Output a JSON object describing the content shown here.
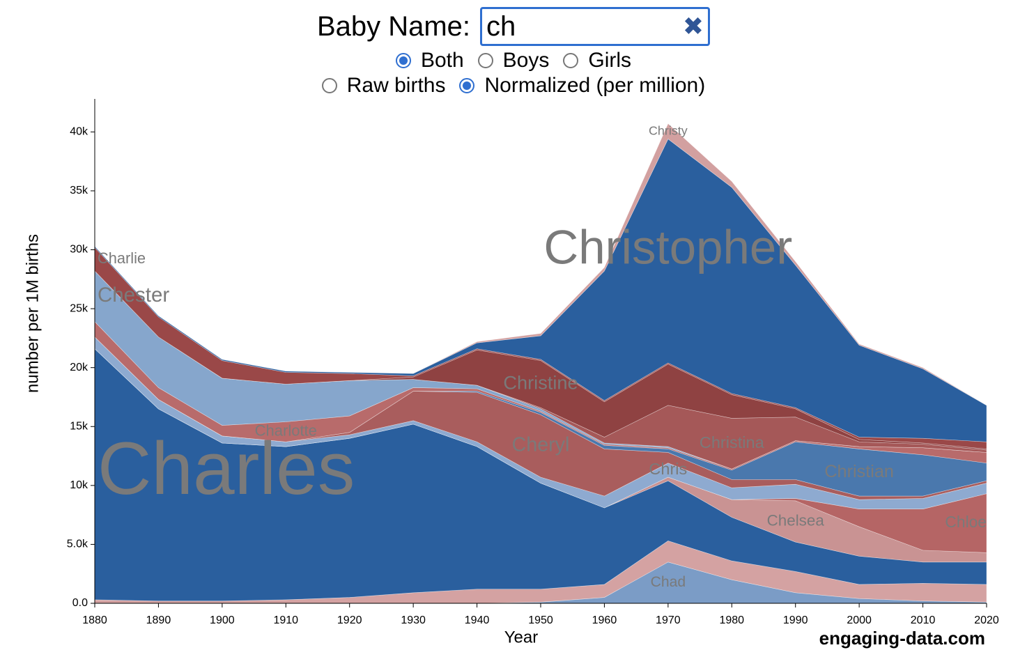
{
  "controls": {
    "label": "Baby Name:",
    "input": "ch",
    "clear": "✖",
    "radios_sex": [
      {
        "label": "Both",
        "checked": true
      },
      {
        "label": "Boys",
        "checked": false
      },
      {
        "label": "Girls",
        "checked": false
      }
    ],
    "radios_scale": [
      {
        "label": "Raw births",
        "checked": false
      },
      {
        "label": "Normalized (per million)",
        "checked": true
      }
    ]
  },
  "credit": "engaging-data.com",
  "chart_data": {
    "type": "stacked_area",
    "xlabel": "Year",
    "ylabel": "number per 1M births",
    "x": [
      1880,
      1890,
      1900,
      1910,
      1920,
      1930,
      1940,
      1950,
      1960,
      1970,
      1980,
      1990,
      2000,
      2010,
      2020
    ],
    "xlim": [
      1880,
      2020
    ],
    "xticks": [
      1880,
      1890,
      1900,
      1910,
      1920,
      1930,
      1940,
      1950,
      1960,
      1970,
      1980,
      1990,
      2000,
      2010,
      2020
    ],
    "ylim": [
      0,
      42800
    ],
    "yticks": [
      {
        "value": 0,
        "label": "0.0"
      },
      {
        "value": 5000,
        "label": "5.0k"
      },
      {
        "value": 10000,
        "label": "10k"
      },
      {
        "value": 15000,
        "label": "15k"
      },
      {
        "value": 20000,
        "label": "20k"
      },
      {
        "value": 25000,
        "label": "25k"
      },
      {
        "value": 30000,
        "label": "30k"
      },
      {
        "value": 35000,
        "label": "35k"
      },
      {
        "value": 40000,
        "label": "40k"
      }
    ],
    "series": [
      {
        "name": "Chad",
        "color": "#7b9cc6",
        "values": [
          0,
          0,
          0,
          0,
          0,
          0,
          0,
          100,
          500,
          3500,
          2000,
          900,
          400,
          200,
          100
        ]
      },
      {
        "color": "#d4a2a2",
        "values": [
          300,
          200,
          200,
          300,
          500,
          900,
          1200,
          1100,
          1100,
          1800,
          1600,
          1800,
          1200,
          1500,
          1500
        ]
      },
      {
        "name": "Charles",
        "color": "#2a5f9e",
        "values": [
          21300,
          16300,
          13400,
          13000,
          13500,
          14300,
          12100,
          9000,
          6500,
          5100,
          3700,
          2500,
          2400,
          1800,
          1900
        ]
      },
      {
        "name": "Chelsea",
        "color": "#c99393",
        "values": [
          0,
          0,
          0,
          0,
          0,
          0,
          0,
          0,
          0,
          300,
          1500,
          3500,
          2500,
          1000,
          800
        ]
      },
      {
        "name": "Chloe",
        "color": "#b56565",
        "values": [
          0,
          0,
          0,
          0,
          0,
          0,
          0,
          0,
          0,
          0,
          0,
          200,
          1500,
          3500,
          5000
        ]
      },
      {
        "name": "Chris",
        "color": "#8eaad0",
        "values": [
          1000,
          800,
          600,
          400,
          300,
          300,
          400,
          500,
          1000,
          1200,
          1000,
          1200,
          800,
          900,
          900
        ]
      },
      {
        "name": "Cheryl",
        "color": "#a95d5d",
        "values": [
          0,
          0,
          0,
          0,
          200,
          2500,
          4200,
          5300,
          4000,
          900,
          700,
          400,
          300,
          200,
          200
        ]
      },
      {
        "name": "Christian",
        "color": "#4a78ad",
        "values": [
          0,
          0,
          0,
          0,
          0,
          0,
          100,
          200,
          300,
          300,
          800,
          3200,
          4000,
          3500,
          1500
        ]
      },
      {
        "name": "Charlotte",
        "color": "#b86b6b",
        "values": [
          1300,
          1000,
          900,
          1700,
          1400,
          300,
          200,
          100,
          100,
          100,
          100,
          100,
          200,
          600,
          900
        ]
      },
      {
        "name": "Chester",
        "color": "#86a6cc",
        "values": [
          4300,
          4300,
          4000,
          3200,
          3000,
          700,
          300,
          200,
          100,
          100,
          0,
          0,
          0,
          0,
          0
        ]
      },
      {
        "name": "Christina",
        "color": "#a55858",
        "values": [
          0,
          0,
          0,
          0,
          0,
          0,
          0,
          100,
          500,
          3500,
          4300,
          2000,
          400,
          300,
          200
        ]
      },
      {
        "name": "Christine",
        "color": "#8f4242",
        "values": [
          0,
          0,
          0,
          0,
          0,
          200,
          3000,
          4000,
          3000,
          3500,
          2000,
          700,
          200,
          100,
          100
        ]
      },
      {
        "name": "Charlie",
        "color": "#9a4848",
        "values": [
          2000,
          1700,
          1500,
          1000,
          600,
          100,
          100,
          100,
          100,
          100,
          100,
          100,
          200,
          400,
          600
        ]
      },
      {
        "name": "Christopher",
        "color": "#2a5f9e",
        "values": [
          100,
          100,
          100,
          100,
          100,
          200,
          500,
          2000,
          11000,
          19000,
          17500,
          12100,
          7800,
          5900,
          3100
        ]
      },
      {
        "name": "Christy",
        "color": "#d2a0a0",
        "values": [
          0,
          0,
          0,
          0,
          0,
          0,
          100,
          200,
          300,
          1300,
          500,
          300,
          100,
          100,
          0
        ]
      }
    ]
  }
}
